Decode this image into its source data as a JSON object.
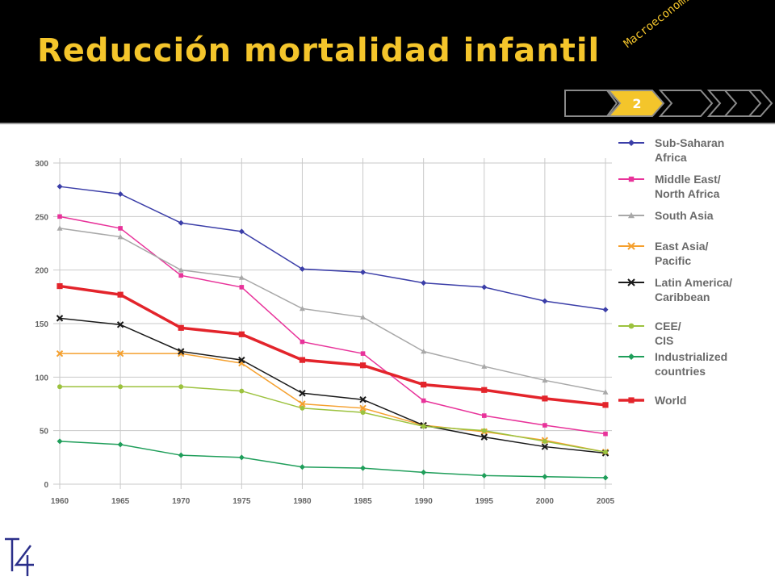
{
  "slide": {
    "title": "Reducción mortalidad infantil",
    "subject": "Macroeconomía",
    "slide_number": "2",
    "logo_text": "T4"
  },
  "colors": {
    "header_bg": "#000000",
    "title": "#f4c52b",
    "nav_active": "#f4c52b"
  },
  "chart_data": {
    "type": "line",
    "x": [
      "1960",
      "1965",
      "1970",
      "1975",
      "1980",
      "1985",
      "1990",
      "1995",
      "2000",
      "2005"
    ],
    "ylim": [
      0,
      300
    ],
    "yticks": [
      "0",
      "50",
      "100",
      "150",
      "200",
      "250",
      "300"
    ],
    "grid": true,
    "legend": "right",
    "series": [
      {
        "name": "Sub-Saharan Africa",
        "color": "#3b3ea8",
        "marker": "diamond",
        "width": 1.5,
        "values": [
          278,
          271,
          244,
          236,
          201,
          198,
          188,
          184,
          171,
          163
        ]
      },
      {
        "name": "Middle East/ North Africa",
        "color": "#e8339a",
        "marker": "square",
        "width": 1.5,
        "values": [
          250,
          239,
          195,
          184,
          133,
          122,
          78,
          64,
          55,
          47
        ]
      },
      {
        "name": "South Asia",
        "color": "#a8a8a8",
        "marker": "triangle",
        "width": 1.5,
        "values": [
          239,
          231,
          200,
          193,
          164,
          156,
          124,
          110,
          97,
          86
        ]
      },
      {
        "name": "East Asia/ Pacific",
        "color": "#f5a02e",
        "marker": "x",
        "width": 1.5,
        "values": [
          122,
          122,
          122,
          113,
          75,
          71,
          55,
          49,
          41,
          30
        ]
      },
      {
        "name": "Latin America/ Caribbean",
        "color": "#1a1a1a",
        "marker": "x",
        "width": 1.5,
        "values": [
          155,
          149,
          124,
          116,
          85,
          79,
          55,
          44,
          35,
          29
        ]
      },
      {
        "name": "CEE/CIS",
        "color": "#9cc23e",
        "marker": "circle",
        "width": 1.5,
        "values": [
          91,
          91,
          91,
          87,
          71,
          67,
          54,
          50,
          40,
          30
        ]
      },
      {
        "name": "Industrialized countries",
        "color": "#1f9e5a",
        "marker": "diamond",
        "width": 1.5,
        "values": [
          40,
          37,
          27,
          25,
          16,
          15,
          11,
          8,
          7,
          6
        ]
      },
      {
        "name": "World",
        "color": "#e3242b",
        "marker": "square",
        "width": 3.5,
        "values": [
          185,
          177,
          146,
          140,
          116,
          111,
          93,
          88,
          80,
          74
        ]
      }
    ]
  }
}
